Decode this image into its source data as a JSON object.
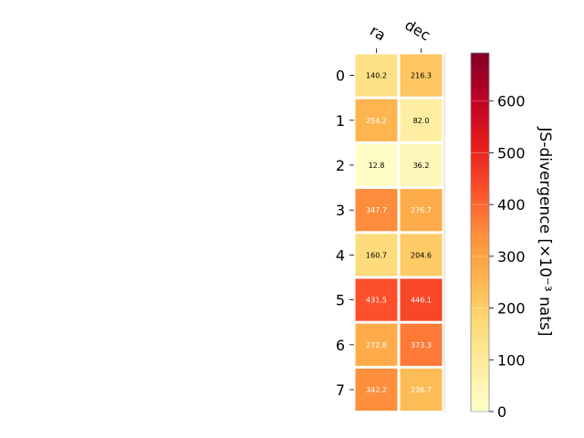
{
  "chart_data": {
    "type": "heatmap",
    "columns": [
      "ra",
      "dec"
    ],
    "rows": [
      "0",
      "1",
      "2",
      "3",
      "4",
      "5",
      "6",
      "7"
    ],
    "values": [
      [
        140.2,
        216.3
      ],
      [
        254.2,
        82.0
      ],
      [
        12.8,
        36.2
      ],
      [
        347.7,
        276.7
      ],
      [
        160.7,
        204.6
      ],
      [
        431.5,
        446.1
      ],
      [
        272.8,
        373.3
      ],
      [
        342.2,
        236.7
      ]
    ],
    "cell_labels": [
      [
        "140.2",
        "216.3"
      ],
      [
        "254.2",
        "82.0"
      ],
      [
        "12.8",
        "36.2"
      ],
      [
        "347.7",
        "276.7"
      ],
      [
        "160.7",
        "204.6"
      ],
      [
        "431.5",
        "446.1"
      ],
      [
        "272.8",
        "373.3"
      ],
      [
        "342.2",
        "236.7"
      ]
    ],
    "colorbar": {
      "label": "JS-divergence [×10⁻³ nats]",
      "range": [
        0,
        693
      ],
      "ticks": [
        0,
        100,
        200,
        300,
        400,
        500,
        600
      ],
      "colormap": "YlOrRd"
    }
  }
}
